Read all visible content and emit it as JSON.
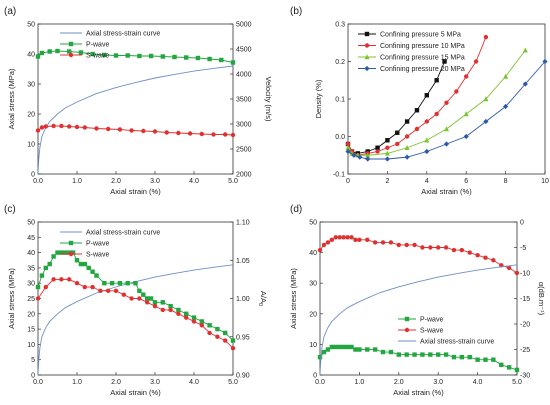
{
  "colors": {
    "stress": "#6f8fc8",
    "pwave": "#22a640",
    "swave": "#e03030",
    "c5": "#111111",
    "c10": "#e03030",
    "c15": "#7cc42c",
    "c20": "#2f5aa8",
    "axis": "#333333"
  },
  "chart_data": [
    {
      "panel_label": "(a)",
      "type": "line",
      "xlabel": "Axial strain (%)",
      "ylabel": "Axial stress (MPa)",
      "y2label": "Velocity (m/s)",
      "xlim": [
        0,
        5
      ],
      "ylim": [
        0,
        50
      ],
      "y2lim": [
        2000,
        5000
      ],
      "xticks": [
        0.0,
        1.0,
        2.0,
        3.0,
        4.0,
        5.0
      ],
      "xticklabels": [
        "0.0",
        "1.0",
        "2.0",
        "3.0",
        "4.0",
        "5.0"
      ],
      "yticks": [
        0,
        10,
        20,
        30,
        40,
        50
      ],
      "yticklabels": [
        "0",
        "10",
        "20",
        "30",
        "40",
        "50"
      ],
      "y2ticks": [
        2000,
        2500,
        3000,
        3500,
        4000,
        4500,
        5000
      ],
      "y2ticklabels": [
        "2000",
        "2500",
        "3000",
        "3500",
        "4000",
        "4500",
        "5000"
      ],
      "legend_position": "top",
      "series": [
        {
          "name": "Axial stress-strain curve",
          "axis": "left",
          "color": "stress",
          "marker": "none",
          "x": [
            0,
            0.02,
            0.05,
            0.1,
            0.2,
            0.3,
            0.5,
            0.7,
            1.0,
            1.5,
            2.0,
            2.5,
            3.0,
            3.5,
            4.0,
            4.5,
            5.0
          ],
          "y": [
            0,
            5,
            9,
            12.5,
            15.5,
            17.5,
            20,
            22,
            24,
            26.8,
            28.8,
            30.5,
            32,
            33.2,
            34.3,
            35.2,
            36
          ]
        },
        {
          "name": "P-wave",
          "axis": "right",
          "color": "pwave",
          "marker": "square",
          "x": [
            0,
            0.1,
            0.3,
            0.5,
            0.8,
            1.1,
            1.4,
            1.7,
            2.0,
            2.3,
            2.6,
            2.9,
            3.2,
            3.5,
            3.8,
            4.1,
            4.4,
            4.7,
            5.0
          ],
          "y": [
            4350,
            4420,
            4450,
            4460,
            4450,
            4430,
            4400,
            4380,
            4370,
            4370,
            4360,
            4360,
            4350,
            4340,
            4330,
            4320,
            4300,
            4280,
            4230
          ]
        },
        {
          "name": "S-wave",
          "axis": "right",
          "color": "swave",
          "marker": "circle",
          "x": [
            0,
            0.1,
            0.2,
            0.4,
            0.6,
            0.8,
            1.0,
            1.2,
            1.5,
            1.8,
            2.1,
            2.4,
            2.7,
            3.0,
            3.3,
            3.6,
            3.9,
            4.2,
            4.5,
            4.8,
            5.0
          ],
          "y": [
            2870,
            2930,
            2950,
            2960,
            2960,
            2950,
            2940,
            2930,
            2910,
            2900,
            2890,
            2870,
            2860,
            2850,
            2830,
            2820,
            2810,
            2800,
            2790,
            2790,
            2780
          ]
        }
      ]
    },
    {
      "panel_label": "(b)",
      "type": "line",
      "xlabel": "Axial strain (%)",
      "ylabel": "Density (%)",
      "xlim": [
        0,
        10
      ],
      "ylim": [
        -0.1,
        0.3
      ],
      "xticks": [
        0,
        2,
        4,
        6,
        8,
        10
      ],
      "xticklabels": [
        "0",
        "2",
        "4",
        "6",
        "8",
        "10"
      ],
      "yticks": [
        -0.1,
        0.0,
        0.1,
        0.2,
        0.3
      ],
      "yticklabels": [
        "-0.1",
        "0.0",
        "0.1",
        "0.2",
        "0.3"
      ],
      "legend_position": "top-left",
      "series": [
        {
          "name": "Confining pressure 5 MPa",
          "color": "c5",
          "marker": "square",
          "x": [
            0,
            0.2,
            0.5,
            1.0,
            1.5,
            2.0,
            2.5,
            3.0,
            3.5,
            4.0,
            4.5,
            4.9
          ],
          "y": [
            -0.02,
            -0.04,
            -0.045,
            -0.04,
            -0.03,
            -0.01,
            0.01,
            0.04,
            0.07,
            0.11,
            0.15,
            0.2
          ]
        },
        {
          "name": "Confining pressure 10 MPa",
          "color": "c10",
          "marker": "circle",
          "x": [
            0,
            0.2,
            0.5,
            1.0,
            1.5,
            2.0,
            2.5,
            3.0,
            3.5,
            4.0,
            4.5,
            5.0,
            5.5,
            6.0,
            6.5,
            7.0
          ],
          "y": [
            -0.02,
            -0.04,
            -0.05,
            -0.045,
            -0.04,
            -0.03,
            -0.02,
            0.0,
            0.02,
            0.04,
            0.06,
            0.09,
            0.12,
            0.16,
            0.2,
            0.265
          ]
        },
        {
          "name": "Confining pressure 15 MPa",
          "color": "c15",
          "marker": "triangle",
          "x": [
            0,
            0.2,
            0.5,
            1.0,
            2.0,
            3.0,
            4.0,
            5.0,
            6.0,
            7.0,
            8.0,
            9.0
          ],
          "y": [
            -0.03,
            -0.045,
            -0.05,
            -0.05,
            -0.045,
            -0.03,
            -0.01,
            0.02,
            0.06,
            0.1,
            0.16,
            0.23
          ]
        },
        {
          "name": "Confining pressure 20 MPa",
          "color": "c20",
          "marker": "diamond",
          "x": [
            0,
            0.3,
            0.6,
            1.0,
            2.0,
            3.0,
            4.0,
            5.0,
            6.0,
            7.0,
            8.0,
            9.0,
            10.0
          ],
          "y": [
            -0.04,
            -0.05,
            -0.055,
            -0.06,
            -0.06,
            -0.055,
            -0.04,
            -0.02,
            0.0,
            0.04,
            0.08,
            0.14,
            0.2
          ]
        }
      ]
    },
    {
      "panel_label": "(c)",
      "type": "line",
      "xlabel": "Axial strain (%)",
      "ylabel": "Axial stress (MPa)",
      "y2label": "A/A",
      "y2label_sub": "0",
      "xlim": [
        0,
        5
      ],
      "ylim": [
        0,
        50
      ],
      "y2lim": [
        0.9,
        1.1
      ],
      "xticks": [
        0.0,
        1.0,
        2.0,
        3.0,
        4.0,
        5.0
      ],
      "xticklabels": [
        "0.0",
        "1.0",
        "2.0",
        "3.0",
        "4.0",
        "5.0"
      ],
      "yticks": [
        0,
        5,
        10,
        15,
        20,
        25,
        30,
        35,
        40,
        45,
        50
      ],
      "yticklabels": [
        "0",
        "5",
        "10",
        "15",
        "20",
        "25",
        "30",
        "35",
        "40",
        "45",
        "50"
      ],
      "y2ticks": [
        0.9,
        0.95,
        1.0,
        1.05,
        1.1
      ],
      "y2ticklabels": [
        "0.90",
        "0.95",
        "1.00",
        "1.05",
        "1.10"
      ],
      "legend_position": "top",
      "series": [
        {
          "name": "Axial stress-strain curve",
          "axis": "left",
          "color": "stress",
          "marker": "none",
          "x": [
            0,
            0.02,
            0.05,
            0.1,
            0.2,
            0.3,
            0.5,
            0.7,
            1.0,
            1.5,
            2.0,
            2.5,
            3.0,
            3.5,
            4.0,
            4.5,
            5.0
          ],
          "y": [
            0,
            5,
            9,
            12.5,
            15.5,
            17.5,
            20,
            22,
            24,
            26.8,
            28.8,
            30.5,
            32,
            33.2,
            34.3,
            35.2,
            36
          ]
        },
        {
          "name": "P-wave",
          "axis": "right",
          "color": "pwave",
          "marker": "square",
          "x": [
            0,
            0.1,
            0.2,
            0.3,
            0.4,
            0.5,
            0.6,
            0.7,
            0.8,
            0.9,
            1.0,
            1.1,
            1.2,
            1.3,
            1.4,
            1.5,
            1.7,
            1.9,
            2.1,
            2.3,
            2.5,
            2.6,
            2.7,
            2.8,
            2.9,
            3.0,
            3.2,
            3.4,
            3.6,
            3.8,
            4.0,
            4.2,
            4.4,
            4.6,
            4.8,
            5.0
          ],
          "y": [
            1.015,
            1.03,
            1.04,
            1.045,
            1.055,
            1.06,
            1.06,
            1.06,
            1.06,
            1.06,
            1.05,
            1.045,
            1.045,
            1.04,
            1.035,
            1.03,
            1.02,
            1.02,
            1.02,
            1.02,
            1.02,
            1.01,
            1.005,
            1.0,
            1.0,
            0.995,
            0.995,
            0.99,
            0.985,
            0.98,
            0.975,
            0.97,
            0.965,
            0.96,
            0.955,
            0.945
          ]
        },
        {
          "name": "S-wave",
          "axis": "right",
          "color": "swave",
          "marker": "circle",
          "x": [
            0,
            0.2,
            0.4,
            0.6,
            0.8,
            1.0,
            1.2,
            1.4,
            1.6,
            1.8,
            2.0,
            2.2,
            2.4,
            2.6,
            2.8,
            3.0,
            3.2,
            3.4,
            3.6,
            3.8,
            4.0,
            4.2,
            4.4,
            4.6,
            4.8,
            5.0
          ],
          "y": [
            1.0,
            1.015,
            1.025,
            1.025,
            1.025,
            1.02,
            1.015,
            1.015,
            1.01,
            1.01,
            1.01,
            1.005,
            1.0,
            1.0,
            0.995,
            0.99,
            0.985,
            0.985,
            0.98,
            0.975,
            0.97,
            0.965,
            0.955,
            0.95,
            0.945,
            0.935
          ]
        }
      ]
    },
    {
      "panel_label": "(d)",
      "type": "line",
      "xlabel": "Axial strain (%)",
      "ylabel": "Axial stress (MPa)",
      "y2label": "α(dB.m⁻¹)",
      "xlim": [
        0,
        5
      ],
      "ylim": [
        0,
        50
      ],
      "y2lim": [
        -30,
        0
      ],
      "xticks": [
        0.0,
        1.0,
        2.0,
        3.0,
        4.0,
        5.0
      ],
      "xticklabels": [
        "0.0",
        "1.0",
        "2.0",
        "3.0",
        "4.0",
        "5.0"
      ],
      "yticks": [
        0,
        10,
        20,
        30,
        40,
        50
      ],
      "yticklabels": [
        "0",
        "10",
        "20",
        "30",
        "40",
        "50"
      ],
      "y2ticks": [
        -30,
        -25,
        -20,
        -15,
        -10,
        -5,
        0
      ],
      "y2ticklabels": [
        "-30",
        "-25",
        "-20",
        "-15",
        "-10",
        "-5",
        "0"
      ],
      "legend_position": "bottom-right",
      "series": [
        {
          "name": "P-wave",
          "axis": "right",
          "color": "pwave",
          "marker": "square",
          "x": [
            0,
            0.1,
            0.2,
            0.3,
            0.4,
            0.5,
            0.6,
            0.7,
            0.8,
            0.9,
            1.0,
            1.2,
            1.4,
            1.6,
            1.8,
            2.0,
            2.2,
            2.4,
            2.6,
            2.8,
            3.0,
            3.2,
            3.4,
            3.6,
            3.8,
            4.0,
            4.2,
            4.4,
            4.6,
            4.8,
            5.0
          ],
          "y": [
            -26.5,
            -25.5,
            -25,
            -24.5,
            -24.5,
            -24.5,
            -24.5,
            -24.5,
            -24.5,
            -25,
            -25,
            -25,
            -25,
            -25.5,
            -25.5,
            -26,
            -26,
            -26,
            -26,
            -26,
            -26,
            -26,
            -26.5,
            -26.5,
            -26.5,
            -27,
            -27,
            -27,
            -28,
            -28.5,
            -29
          ]
        },
        {
          "name": "S-wave",
          "axis": "right",
          "color": "swave",
          "marker": "circle",
          "x": [
            0,
            0.1,
            0.2,
            0.3,
            0.4,
            0.5,
            0.6,
            0.7,
            0.8,
            0.9,
            1.0,
            1.2,
            1.4,
            1.6,
            1.8,
            2.0,
            2.2,
            2.4,
            2.6,
            2.8,
            3.0,
            3.2,
            3.4,
            3.6,
            3.8,
            4.0,
            4.2,
            4.4,
            4.6,
            4.8,
            5.0
          ],
          "y": [
            -5.5,
            -4.5,
            -4,
            -3.5,
            -3,
            -3,
            -3,
            -3,
            -3,
            -3.5,
            -3.5,
            -3.5,
            -4,
            -4,
            -4,
            -4.5,
            -4.5,
            -4.5,
            -5,
            -5,
            -5,
            -5,
            -5.5,
            -5.5,
            -6,
            -6.5,
            -7,
            -7.5,
            -8.5,
            -9,
            -10
          ]
        },
        {
          "name": "Axial stress-strain curve",
          "axis": "left",
          "color": "stress",
          "marker": "none",
          "x": [
            0,
            0.02,
            0.05,
            0.1,
            0.2,
            0.3,
            0.5,
            0.7,
            1.0,
            1.5,
            2.0,
            2.5,
            3.0,
            3.5,
            4.0,
            4.5,
            5.0
          ],
          "y": [
            0,
            5,
            9,
            12.5,
            15.5,
            17.5,
            20,
            22,
            24,
            26.8,
            28.8,
            30.5,
            32,
            33.2,
            34.3,
            35.2,
            36
          ]
        }
      ]
    }
  ]
}
